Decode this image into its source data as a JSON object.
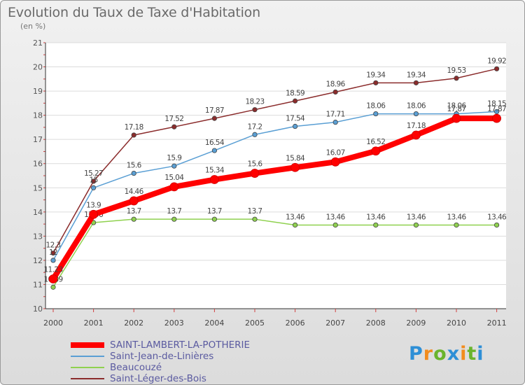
{
  "title": "Evolution du Taux de Taxe d'Habitation",
  "subtitle": "(en %)",
  "logo": {
    "letters": [
      "P",
      "r",
      "o",
      "x",
      "i",
      "t",
      "i"
    ],
    "colors": [
      "#2e8fd6",
      "#f28c1e",
      "#6ab42d",
      "#2e8fd6",
      "#f28c1e",
      "#6ab42d",
      "#2e8fd6"
    ]
  },
  "chart_data": {
    "type": "line",
    "title": "Evolution du Taux de Taxe d'Habitation",
    "ylabel": "(en %)",
    "xlabel": "",
    "ylim": [
      10,
      21
    ],
    "yticks": [
      "10",
      "11",
      "12",
      "13",
      "14",
      "15",
      "16",
      "17",
      "18",
      "19",
      "20",
      "21"
    ],
    "categories": [
      "2000",
      "2001",
      "2002",
      "2003",
      "2004",
      "2005",
      "2006",
      "2007",
      "2008",
      "2009",
      "2010",
      "2011"
    ],
    "grid": "horizontal",
    "legend_position": "bottom",
    "series": [
      {
        "name": "Saint-Léger-des-Bois",
        "color": "#8b2c2c",
        "width": 1.5,
        "values": [
          12.3,
          15.27,
          17.18,
          17.52,
          17.87,
          18.23,
          18.59,
          18.96,
          19.34,
          19.34,
          19.53,
          19.92
        ],
        "labels": [
          "12.3",
          "15.27",
          "17.18",
          "17.52",
          "17.87",
          "18.23",
          "18.59",
          "18.96",
          "19.34",
          "19.34",
          "19.53",
          "19.92"
        ]
      },
      {
        "name": "Saint-Jean-de-Linières",
        "color": "#5a9fd4",
        "width": 1.5,
        "values": [
          12.0,
          15.0,
          15.6,
          15.9,
          16.54,
          17.2,
          17.54,
          17.71,
          18.06,
          18.06,
          18.06,
          18.15
        ],
        "labels": [
          "12",
          "15",
          "15.6",
          "15.9",
          "16.54",
          "17.2",
          "17.54",
          "17.71",
          "18.06",
          "18.06",
          "18.06",
          "18.15"
        ]
      },
      {
        "name": "Beaucouzé",
        "color": "#8fd14f",
        "width": 1.5,
        "values": [
          10.89,
          13.56,
          13.7,
          13.7,
          13.7,
          13.7,
          13.46,
          13.46,
          13.46,
          13.46,
          13.46,
          13.46
        ],
        "labels": [
          "10.89",
          "13.56",
          "13.7",
          "13.7",
          "13.7",
          "13.7",
          "13.46",
          "13.46",
          "13.46",
          "13.46",
          "13.46",
          "13.46"
        ]
      },
      {
        "name": "SAINT-LAMBERT-LA-POTHERIE",
        "color": "#ff0000",
        "width": 8,
        "values": [
          11.23,
          13.9,
          14.46,
          15.04,
          15.34,
          15.6,
          15.84,
          16.07,
          16.52,
          17.18,
          17.87,
          17.87
        ],
        "labels": [
          "11.23",
          "13.9",
          "14.46",
          "15.04",
          "15.34",
          "15.6",
          "15.84",
          "16.07",
          "16.52",
          "17.18",
          "17.87",
          "17.87"
        ]
      }
    ],
    "legend_order": [
      3,
      1,
      2,
      0
    ]
  }
}
